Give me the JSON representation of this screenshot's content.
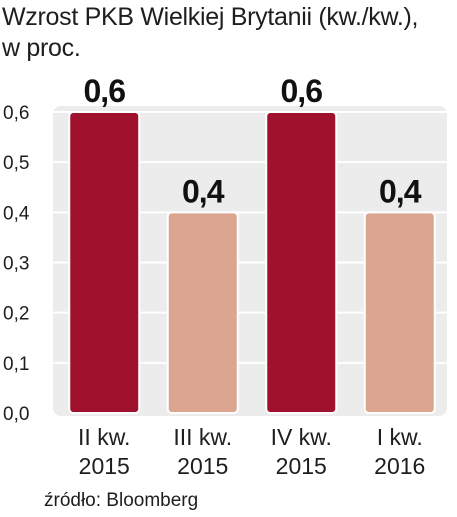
{
  "chart_data": {
    "type": "bar",
    "title_lines": [
      "Wzrost PKB Wielkiej Brytanii (kw./kw.),",
      "w proc."
    ],
    "categories": [
      [
        "II kw.",
        "2015"
      ],
      [
        "III kw.",
        "2015"
      ],
      [
        "IV kw.",
        "2015"
      ],
      [
        "I kw.",
        "2016"
      ]
    ],
    "values": [
      0.6,
      0.4,
      0.6,
      0.4
    ],
    "data_labels": [
      "0,6",
      "0,4",
      "0,6",
      "0,4"
    ],
    "bar_colors": [
      "#a0112e",
      "#dba58f",
      "#a0112e",
      "#dba58f"
    ],
    "ylim": [
      0,
      0.6
    ],
    "yticks": [
      0.0,
      0.1,
      0.2,
      0.3,
      0.4,
      0.5,
      0.6
    ],
    "ytick_labels": [
      "0,0",
      "0,1",
      "0,2",
      "0,3",
      "0,4",
      "0,5",
      "0,6"
    ],
    "grid": true,
    "source": "źródło: Bloomberg",
    "colors": {
      "dark_bar": "#a0112e",
      "light_bar": "#dba58f",
      "plot_background": "#ececec",
      "gridline": "#ffffff"
    }
  }
}
